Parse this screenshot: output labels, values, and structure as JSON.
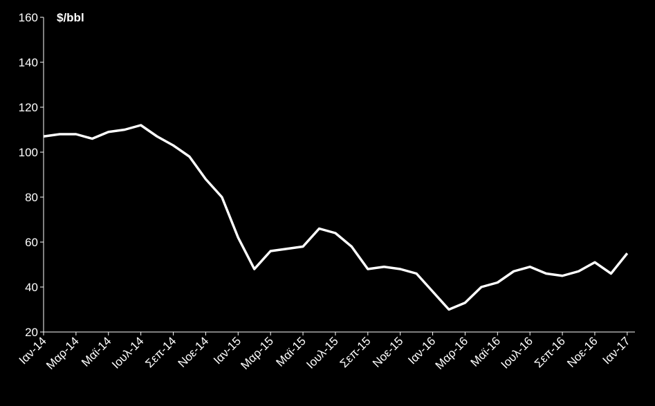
{
  "chart_data": {
    "type": "line",
    "y_label": "$/bbl",
    "categories": [
      "Ιαν-14",
      null,
      "Μαρ-14",
      null,
      "Μαϊ-14",
      null,
      "Ιουλ-14",
      null,
      "Σεπ-14",
      null,
      "Νοε-14",
      null,
      "Ιαν-15",
      null,
      "Μαρ-15",
      null,
      "Μαϊ-15",
      null,
      "Ιουλ-15",
      null,
      "Σεπ-15",
      null,
      "Νοε-15",
      null,
      "Ιαν-16",
      null,
      "Μαρ-16",
      null,
      "Μαϊ-16",
      null,
      "Ιουλ-16",
      null,
      "Σεπ-16",
      null,
      "Νοε-16",
      null,
      "Ιαν-17"
    ],
    "series": [
      {
        "color": "#ffffff",
        "values": [
          107,
          108,
          108,
          106,
          109,
          110,
          112,
          107,
          103,
          98,
          88,
          80,
          62,
          48,
          56,
          57,
          58,
          66,
          64,
          58,
          48,
          49,
          48,
          46,
          38,
          30,
          33,
          40,
          42,
          47,
          49,
          46,
          45,
          47,
          51,
          46,
          55
        ]
      }
    ],
    "ylim": [
      20,
      160
    ],
    "yticks": [
      20,
      40,
      60,
      80,
      100,
      120,
      140,
      160
    ]
  }
}
